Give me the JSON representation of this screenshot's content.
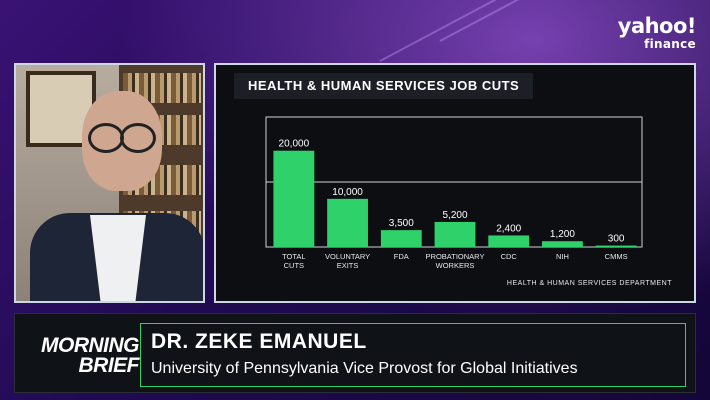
{
  "brand": {
    "line1": "yahoo!",
    "line2": "finance"
  },
  "show": {
    "line1": "MORNING",
    "line2": "BRIEF"
  },
  "guest": {
    "name": "DR. ZEKE EMANUEL",
    "title": "University of Pennsylvania Vice Provost for Global Initiatives"
  },
  "chart": {
    "source": "HEALTH & HUMAN SERVICES DEPARTMENT"
  },
  "colors": {
    "bar": "#2fd16a",
    "accent": "#2fd16a"
  },
  "chart_data": {
    "type": "bar",
    "title": "HEALTH & HUMAN SERVICES JOB CUTS",
    "categories": [
      "TOTAL CUTS",
      "VOLUNTARY EXITS",
      "FDA",
      "PROBATIONARY WORKERS",
      "CDC",
      "NIH",
      "CMMS"
    ],
    "category_lines": [
      [
        "TOTAL",
        "CUTS"
      ],
      [
        "VOLUNTARY",
        "EXITS"
      ],
      [
        "FDA"
      ],
      [
        "PROBATIONARY",
        "WORKERS"
      ],
      [
        "CDC"
      ],
      [
        "NIH"
      ],
      [
        "CMMS"
      ]
    ],
    "values": [
      20000,
      10000,
      3500,
      5200,
      2400,
      1200,
      300
    ],
    "value_labels": [
      "20,000",
      "10,000",
      "3,500",
      "5,200",
      "2,400",
      "1,200",
      "300"
    ],
    "ylim": [
      0,
      27000
    ],
    "grid": "horizontal line at midpoint"
  }
}
